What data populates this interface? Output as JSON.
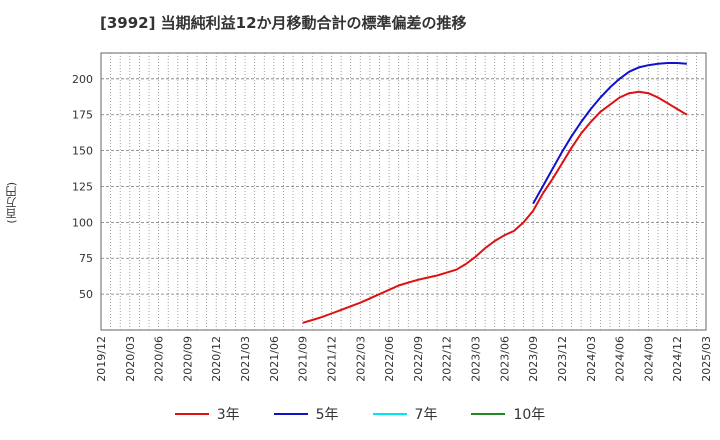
{
  "chart_data": {
    "type": "line",
    "title": "[3992]  当期純利益12か月移動合計の標準偏差の推移",
    "ylabel": "(百万円)",
    "xlabel": "",
    "ylim": [
      25,
      218
    ],
    "yticks": [
      50,
      75,
      100,
      125,
      150,
      175,
      200
    ],
    "x_tick_labels": [
      "2019/12",
      "2020/03",
      "2020/06",
      "2020/09",
      "2020/12",
      "2021/03",
      "2021/06",
      "2021/09",
      "2021/12",
      "2022/03",
      "2022/06",
      "2022/09",
      "2022/12",
      "2023/03",
      "2023/06",
      "2023/09",
      "2023/12",
      "2024/03",
      "2024/06",
      "2024/09",
      "2024/12",
      "2025/03"
    ],
    "grid": true,
    "legend_position": "bottom",
    "series": [
      {
        "name": "3年",
        "color": "#dd1111",
        "start_index": 21,
        "values": [
          30,
          32,
          34,
          36.5,
          39,
          41.5,
          44,
          47,
          50,
          53,
          56,
          58,
          60,
          61.5,
          63,
          65,
          67,
          71,
          76,
          82,
          87,
          91,
          94,
          100,
          108,
          120,
          130,
          141,
          152,
          162,
          170,
          177,
          182,
          187,
          190,
          191,
          190,
          187,
          183,
          179,
          175
        ]
      },
      {
        "name": "5年",
        "color": "#1111cc",
        "start_index": 45,
        "values": [
          113,
          125,
          137,
          149,
          160,
          170,
          179,
          187,
          194,
          200,
          205,
          208,
          209.5,
          210.5,
          211,
          211,
          210.5
        ]
      },
      {
        "name": "7年",
        "color": "#00e5ee",
        "start_index": null,
        "values": []
      },
      {
        "name": "10年",
        "color": "#228822",
        "start_index": null,
        "values": []
      }
    ]
  }
}
